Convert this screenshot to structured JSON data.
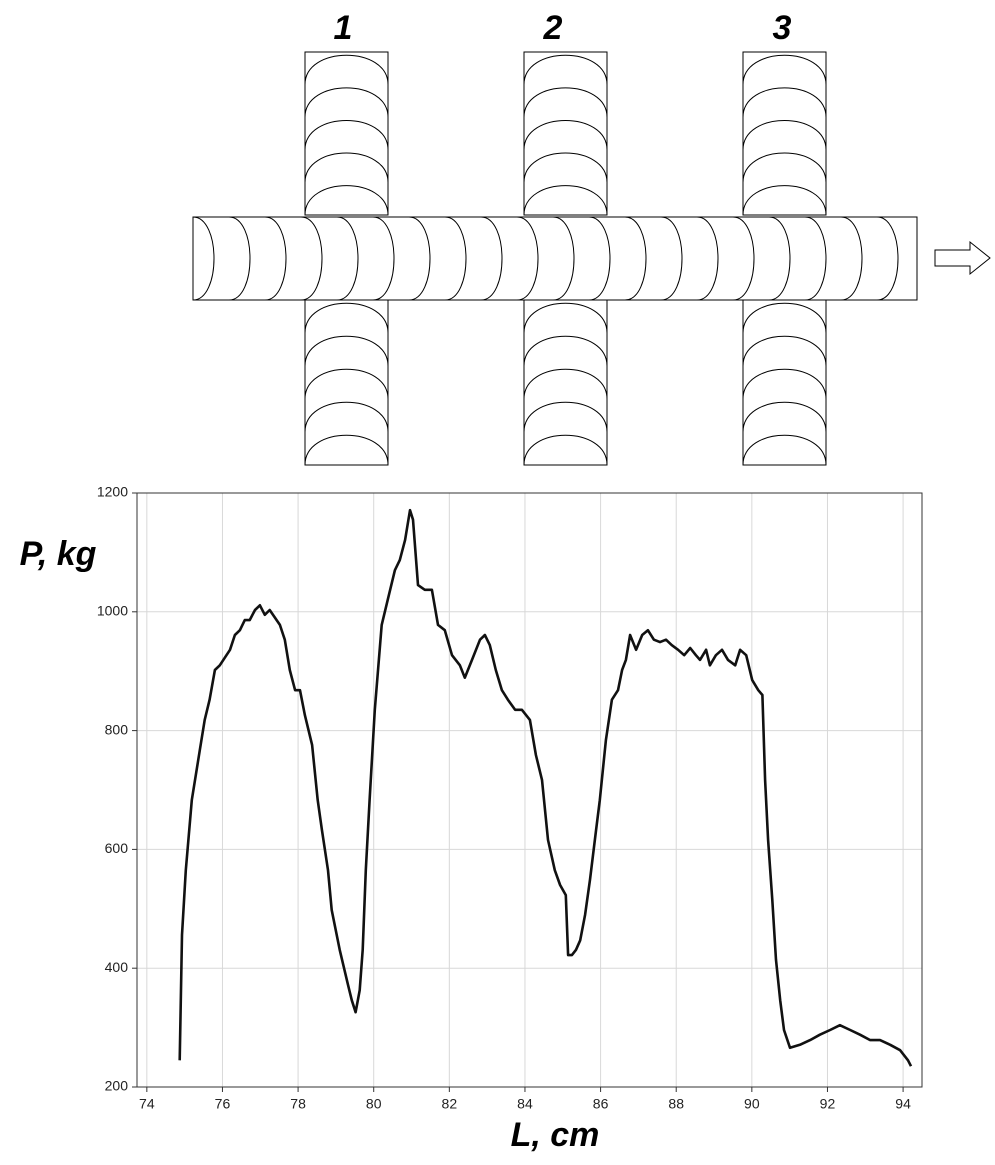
{
  "diagram": {
    "labels": [
      "1",
      "2",
      "3"
    ]
  },
  "chart_data": {
    "type": "line",
    "x_label": "L, cm",
    "y_label": "P, kg",
    "xlim": [
      73.74,
      94.5
    ],
    "ylim": [
      200,
      1200
    ],
    "xticks": [
      74,
      76,
      78,
      80,
      82,
      84,
      86,
      88,
      90,
      92,
      94
    ],
    "yticks": [
      200,
      400,
      600,
      800,
      1000,
      1200
    ],
    "grid": true,
    "series": [
      {
        "color": "#111111",
        "x": [
          74.87,
          74.93,
          75.03,
          75.19,
          75.4,
          75.53,
          75.66,
          75.8,
          75.93,
          76.2,
          76.33,
          76.46,
          76.59,
          76.72,
          76.86,
          76.99,
          77.12,
          77.25,
          77.52,
          77.65,
          77.78,
          77.92,
          78.05,
          78.18,
          78.37,
          78.52,
          78.63,
          78.79,
          78.89,
          79.1,
          79.32,
          79.42,
          79.52,
          79.63,
          79.71,
          79.79,
          79.89,
          80.03,
          80.21,
          80.37,
          80.56,
          80.69,
          80.83,
          80.96,
          81.04,
          81.17,
          81.35,
          81.54,
          81.7,
          81.88,
          82.07,
          82.28,
          82.41,
          82.6,
          82.81,
          82.94,
          83.07,
          83.23,
          83.39,
          83.55,
          83.74,
          83.92,
          84.13,
          84.29,
          84.45,
          84.61,
          84.79,
          84.93,
          85.08,
          85.14,
          85.24,
          85.35,
          85.46,
          85.59,
          85.72,
          85.88,
          85.98,
          86.14,
          86.3,
          86.46,
          86.57,
          86.67,
          86.78,
          86.94,
          87.1,
          87.25,
          87.41,
          87.57,
          87.73,
          87.88,
          88.05,
          88.21,
          88.37,
          88.52,
          88.63,
          88.79,
          88.89,
          89.05,
          89.21,
          89.37,
          89.56,
          89.69,
          89.85,
          90.01,
          90.17,
          90.28,
          90.35,
          90.43,
          90.54,
          90.64,
          90.75,
          90.85,
          91.01,
          91.27,
          91.54,
          91.8,
          92.07,
          92.33,
          92.6,
          92.86,
          93.13,
          93.39,
          93.66,
          93.92,
          94.13,
          94.21
        ],
        "values": [
          245,
          456,
          565,
          683,
          767,
          818,
          852,
          902,
          910,
          936,
          961,
          969,
          986,
          986,
          1003,
          1011,
          995,
          1003,
          978,
          953,
          902,
          868,
          868,
          826,
          776,
          683,
          633,
          565,
          498,
          431,
          372,
          346,
          326,
          363,
          431,
          565,
          683,
          835,
          978,
          1020,
          1070,
          1087,
          1121,
          1171,
          1155,
          1045,
          1037,
          1037,
          978,
          969,
          927,
          910,
          889,
          919,
          953,
          961,
          944,
          902,
          868,
          852,
          835,
          835,
          818,
          759,
          717,
          616,
          565,
          540,
          523,
          422,
          422,
          431,
          447,
          490,
          549,
          633,
          683,
          784,
          852,
          868,
          902,
          919,
          961,
          936,
          961,
          969,
          953,
          949,
          953,
          944,
          936,
          927,
          939,
          927,
          919,
          936,
          910,
          927,
          936,
          919,
          910,
          936,
          927,
          885,
          868,
          860,
          717,
          616,
          515,
          414,
          346,
          296,
          266,
          271,
          279,
          288,
          296,
          304,
          296,
          288,
          279,
          279,
          271,
          262,
          245,
          235
        ]
      }
    ]
  }
}
